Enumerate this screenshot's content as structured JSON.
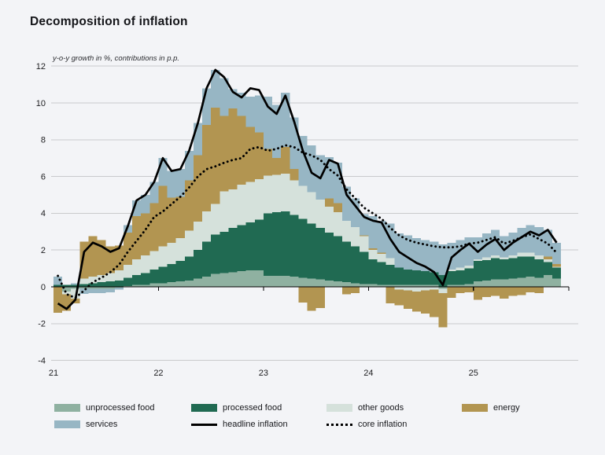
{
  "title": "Decomposition of inflation",
  "subtitle": "y-o-y growth in %, contributions in p.p.",
  "colors": {
    "background": "#f3f4f7",
    "gridline": "#c9cacc",
    "axis": "#000000",
    "tick_label": "#1c1c1f",
    "unprocessed_food": "#8fb1a1",
    "processed_food": "#206a52",
    "other_goods": "#d5e1db",
    "energy": "#b29551",
    "services": "#97b6c4",
    "headline_line": "#000000",
    "core_line": "#000000"
  },
  "chart_data": {
    "type": "bar",
    "subtype": "stacked-bars-with-lines",
    "x_start": "2021-01",
    "x_end": "2025-10",
    "n_months": 58,
    "x_tick_labels": [
      "21",
      "22",
      "23",
      "24",
      "25"
    ],
    "ylim": [
      -4,
      12
    ],
    "ytick_step": 2,
    "grid": "on",
    "legend_position": "bottom",
    "xlabel": "",
    "ylabel": "",
    "series": [
      {
        "name": "unprocessed food",
        "type": "bar",
        "color": "#8fb1a1",
        "values": [
          0,
          -0.25,
          -0.1,
          -0.08,
          -0.1,
          -0.1,
          -0.1,
          -0.05,
          0.05,
          0.1,
          0.1,
          0.2,
          0.2,
          0.25,
          0.3,
          0.35,
          0.45,
          0.55,
          0.7,
          0.75,
          0.8,
          0.85,
          0.9,
          0.9,
          0.6,
          0.6,
          0.6,
          0.55,
          0.5,
          0.45,
          0.4,
          0.35,
          0.3,
          0.25,
          0.2,
          0.15,
          0.15,
          0.1,
          0.1,
          0.1,
          0.1,
          0.1,
          0.1,
          0.1,
          -0.1,
          0.1,
          0.1,
          0.15,
          0.3,
          0.35,
          0.4,
          0.4,
          0.45,
          0.5,
          0.55,
          0.5,
          0.65,
          0.45
        ]
      },
      {
        "name": "processed food",
        "type": "bar",
        "color": "#206a52",
        "values": [
          0.1,
          0.1,
          0.1,
          0.15,
          0.2,
          0.25,
          0.3,
          0.35,
          0.45,
          0.55,
          0.65,
          0.75,
          0.9,
          1.0,
          1.1,
          1.3,
          1.55,
          1.9,
          2.15,
          2.25,
          2.4,
          2.5,
          2.6,
          2.75,
          3.4,
          3.45,
          3.5,
          3.35,
          3.2,
          3.0,
          2.8,
          2.6,
          2.45,
          2.2,
          2.0,
          1.75,
          1.35,
          1.25,
          1.1,
          0.95,
          0.85,
          0.8,
          0.75,
          0.7,
          0.65,
          0.75,
          0.8,
          0.85,
          1.1,
          1.1,
          1.15,
          1.1,
          1.1,
          1.15,
          1.1,
          1.0,
          0.7,
          0.6
        ]
      },
      {
        "name": "other goods",
        "type": "bar",
        "color": "#d5e1db",
        "values": [
          0,
          -0.15,
          -0.55,
          0.3,
          0.35,
          0.4,
          0.45,
          0.55,
          0.7,
          0.85,
          0.95,
          1.0,
          1.1,
          1.15,
          1.25,
          1.4,
          1.55,
          1.65,
          1.65,
          2.2,
          2.1,
          2.2,
          2.2,
          2.2,
          2.05,
          2.05,
          2.05,
          1.9,
          1.8,
          1.7,
          1.55,
          1.4,
          1.3,
          1.15,
          1.05,
          0.85,
          0.5,
          0.45,
          0.35,
          -0.15,
          -0.2,
          -0.25,
          -0.2,
          -0.15,
          -0.25,
          0.1,
          0.15,
          0.15,
          0.1,
          0.15,
          0.15,
          0.1,
          0.15,
          0.2,
          0.2,
          0.2,
          0.15,
          0.05
        ]
      },
      {
        "name": "energy",
        "type": "bar",
        "color": "#b29551",
        "values": [
          -1.4,
          -0.9,
          -0.25,
          2.0,
          2.2,
          1.9,
          1.45,
          1.35,
          1.75,
          2.35,
          2.3,
          2.6,
          3.3,
          2.45,
          2.25,
          2.75,
          3.6,
          4.7,
          5.25,
          4.1,
          4.4,
          3.75,
          3.0,
          2.55,
          1.45,
          0.9,
          1.45,
          0.6,
          -0.85,
          -1.3,
          -1.15,
          0.45,
          0.5,
          -0.4,
          -0.35,
          0.05,
          0.1,
          0.05,
          -0.9,
          -0.85,
          -1.0,
          -1.1,
          -1.25,
          -1.5,
          -1.85,
          -0.6,
          -0.35,
          -0.3,
          -0.7,
          -0.55,
          -0.5,
          -0.65,
          -0.5,
          -0.45,
          -0.3,
          -0.35,
          0.15,
          0.15
        ]
      },
      {
        "name": "services",
        "type": "bar",
        "color": "#97b6c4",
        "values": [
          0.45,
          0.0,
          0.1,
          -0.3,
          -0.25,
          -0.25,
          -0.2,
          -0.1,
          0.4,
          0.85,
          1.0,
          1.15,
          1.5,
          1.45,
          1.5,
          1.6,
          1.75,
          2.0,
          2.05,
          2.05,
          1.05,
          1.25,
          1.65,
          2.0,
          2.85,
          2.9,
          2.95,
          2.8,
          2.7,
          2.55,
          2.4,
          2.25,
          2.2,
          1.85,
          1.55,
          1.15,
          1.75,
          1.75,
          1.9,
          1.85,
          1.85,
          1.75,
          1.7,
          1.65,
          1.65,
          1.45,
          1.5,
          1.55,
          1.2,
          1.3,
          1.4,
          1.15,
          1.25,
          1.35,
          1.5,
          1.55,
          1.45,
          1.15
        ]
      },
      {
        "name": "headline inflation",
        "type": "line",
        "style": "solid",
        "color": "#000000",
        "values": [
          -0.9,
          -1.2,
          -0.7,
          1.9,
          2.4,
          2.2,
          1.9,
          2.1,
          3.3,
          4.7,
          5.0,
          5.7,
          7.0,
          6.3,
          6.4,
          7.4,
          8.9,
          10.8,
          11.8,
          11.4,
          10.6,
          10.3,
          10.8,
          10.7,
          9.8,
          9.4,
          10.4,
          9.0,
          7.4,
          6.2,
          5.9,
          6.9,
          6.7,
          5.0,
          4.4,
          3.8,
          3.6,
          3.5,
          2.6,
          1.9,
          1.6,
          1.3,
          1.1,
          0.8,
          0.1,
          1.6,
          2.0,
          2.35,
          1.9,
          2.3,
          2.6,
          2.0,
          2.4,
          2.7,
          3.0,
          2.8,
          3.1,
          2.4
        ]
      },
      {
        "name": "core inflation",
        "type": "line",
        "style": "dotted",
        "color": "#000000",
        "values": [
          0.6,
          -0.4,
          -0.6,
          -0.2,
          0.25,
          0.5,
          0.8,
          1.2,
          1.9,
          2.5,
          3.1,
          3.8,
          4.1,
          4.5,
          4.9,
          5.4,
          6.0,
          6.4,
          6.55,
          6.75,
          6.9,
          7.0,
          7.5,
          7.6,
          7.4,
          7.5,
          7.7,
          7.6,
          7.3,
          7.15,
          6.9,
          6.4,
          6.05,
          5.3,
          4.8,
          4.3,
          4.0,
          3.7,
          3.2,
          2.8,
          2.55,
          2.4,
          2.3,
          2.2,
          2.15,
          2.15,
          2.2,
          2.35,
          2.4,
          2.55,
          2.7,
          2.35,
          2.5,
          2.7,
          2.85,
          2.6,
          2.35,
          1.85
        ]
      }
    ]
  },
  "legend": {
    "rows": [
      [
        {
          "label": "unprocessed food",
          "swatch": "rect",
          "color": "#8fb1a1"
        },
        {
          "label": "processed food",
          "swatch": "rect",
          "color": "#206a52"
        },
        {
          "label": "other goods",
          "swatch": "rect",
          "color": "#d5e1db"
        },
        {
          "label": "energy",
          "swatch": "rect",
          "color": "#b29551"
        }
      ],
      [
        {
          "label": "services",
          "swatch": "rect",
          "color": "#97b6c4"
        },
        {
          "label": "headline inflation",
          "swatch": "line",
          "color": "#000000"
        },
        {
          "label": "core inflation",
          "swatch": "dotted",
          "color": "#000000"
        }
      ]
    ]
  }
}
